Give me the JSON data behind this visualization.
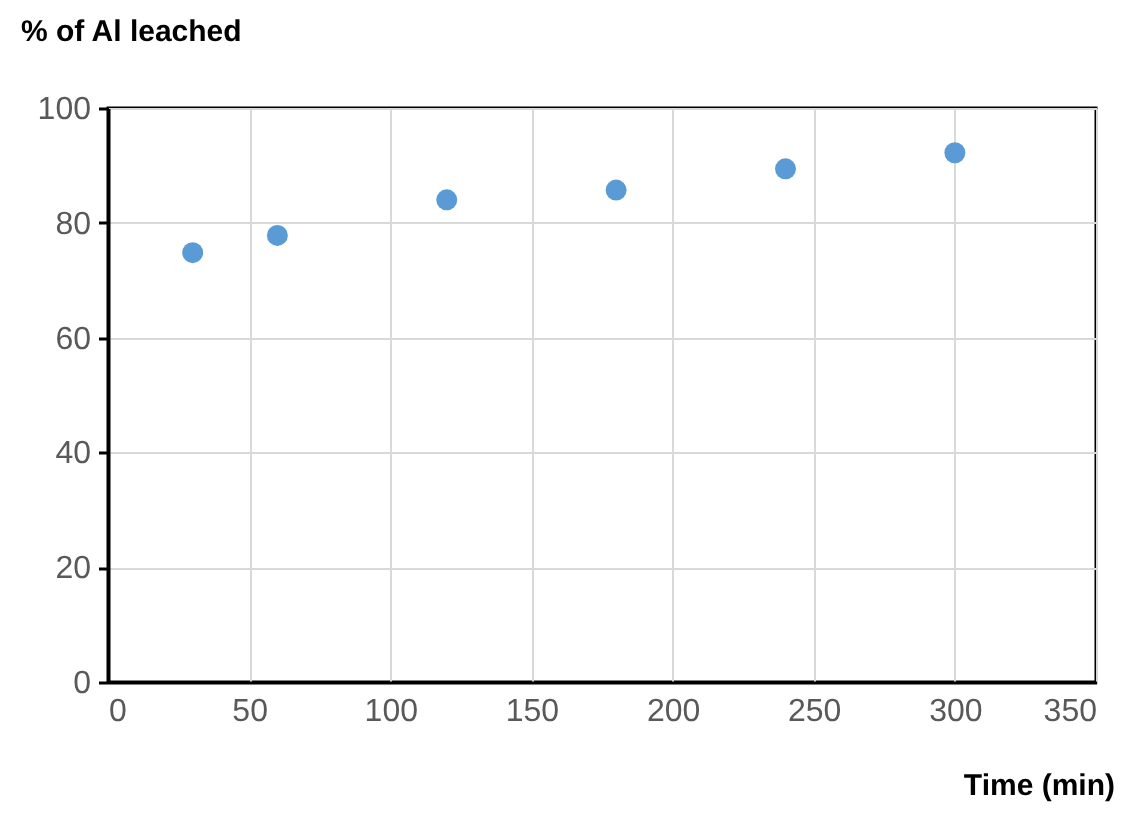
{
  "chart_data": {
    "type": "scatter",
    "xlabel": "Time (min)",
    "ylabel": "% of Al leached",
    "x": [
      30,
      60,
      120,
      180,
      240,
      300
    ],
    "series": [
      {
        "color": "#5b9bd5",
        "values": [
          74.8,
          77.8,
          84.0,
          85.7,
          89.4,
          92.2
        ]
      }
    ],
    "xlim": [
      0,
      350
    ],
    "xticks": [
      0,
      50,
      100,
      150,
      200,
      250,
      300,
      350
    ],
    "ylim": [
      0,
      100
    ],
    "yticks": [
      0,
      20,
      40,
      60,
      80,
      100
    ],
    "grid": true,
    "marker": "circle"
  }
}
